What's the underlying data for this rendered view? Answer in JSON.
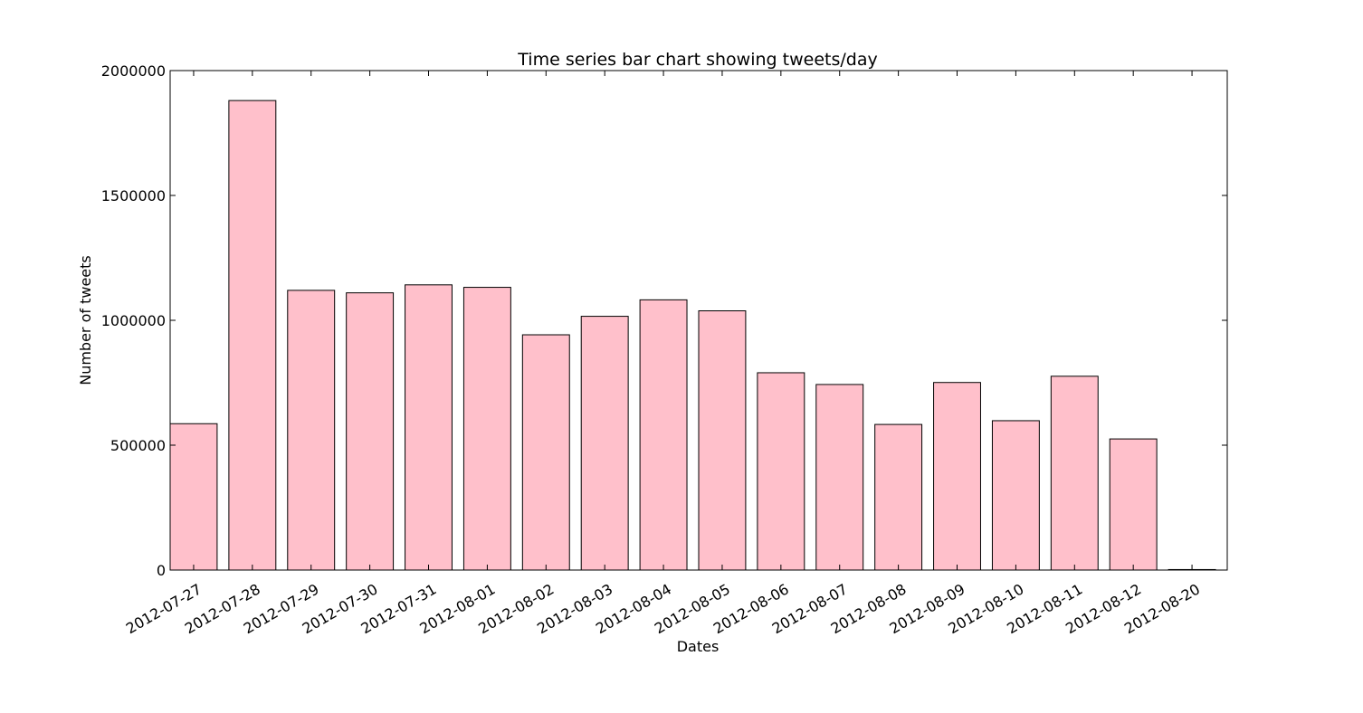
{
  "chart_data": {
    "type": "bar",
    "title": "Time series bar chart showing tweets/day",
    "xlabel": "Dates",
    "ylabel": "Number of tweets",
    "categories": [
      "2012-07-27",
      "2012-07-28",
      "2012-07-29",
      "2012-07-30",
      "2012-07-31",
      "2012-08-01",
      "2012-08-02",
      "2012-08-03",
      "2012-08-04",
      "2012-08-05",
      "2012-08-06",
      "2012-08-07",
      "2012-08-08",
      "2012-08-09",
      "2012-08-10",
      "2012-08-11",
      "2012-08-12",
      "2012-08-20"
    ],
    "values": [
      586000,
      1880000,
      1120000,
      1110000,
      1142000,
      1132000,
      942000,
      1016000,
      1082000,
      1038000,
      790000,
      743000,
      583000,
      751000,
      598000,
      776000,
      525000,
      2000
    ],
    "ylim": [
      0,
      2000000
    ],
    "yticks": [
      0,
      500000,
      1000000,
      1500000,
      2000000
    ],
    "ytick_labels": [
      "0",
      "500000",
      "1000000",
      "1500000",
      "2000000"
    ],
    "bar_color": "#ffc0cb",
    "edge_color": "#000000",
    "grid": false
  }
}
